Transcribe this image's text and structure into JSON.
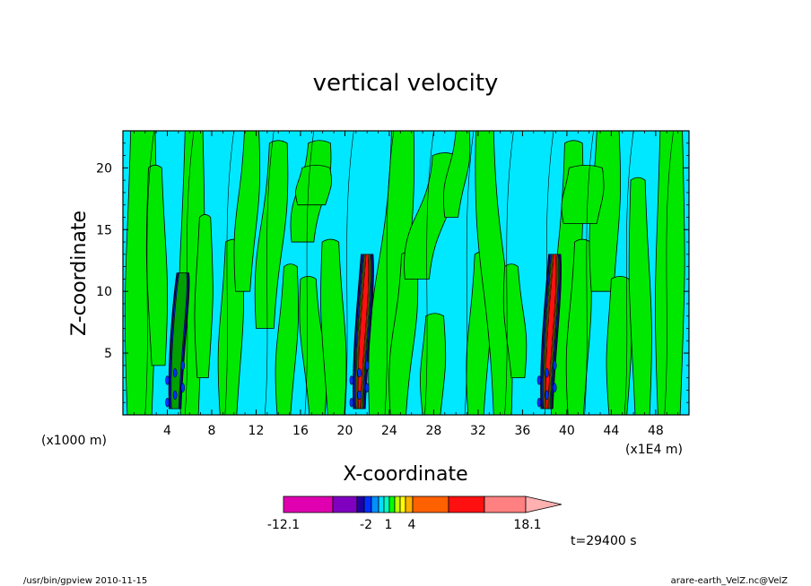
{
  "chart_data": {
    "type": "heatmap",
    "title": "vertical velocity",
    "xlabel": "X-coordinate",
    "ylabel": "Z-coordinate",
    "x_ticks": [
      "4",
      "8",
      "12",
      "16",
      "20",
      "24",
      "28",
      "32",
      "36",
      "40",
      "44",
      "48"
    ],
    "y_ticks": [
      "5",
      "10",
      "15",
      "20"
    ],
    "x_unit_left": "(x1000 m)",
    "x_unit_right": "(x1E4 m)",
    "xlim": [
      0,
      51
    ],
    "ylim": [
      0,
      23
    ],
    "field": {
      "background": "near-zero",
      "updraft_columns_x": [
        4.7,
        21.3,
        38.2
      ],
      "updraft_vertical_extent": [
        0,
        13
      ],
      "peak_value": 18.1,
      "min_value": -12.1
    },
    "colorbar": {
      "tick_labels": [
        "-12.1",
        "-2",
        "1",
        "4",
        "18.1"
      ],
      "colors": [
        "#e000b0",
        "#8000c0",
        "#2000a0",
        "#0030ff",
        "#0090ff",
        "#00e0ff",
        "#00ffc0",
        "#00ff00",
        "#c0ff00",
        "#ffff00",
        "#ffb000",
        "#ff6000",
        "#ff1010",
        "#ff8080",
        "#ffb0b0"
      ],
      "extend": "max"
    },
    "annotation_time": "t=29400 s"
  },
  "footer": {
    "left": "/usr/bin/gpview   2010-11-15",
    "right": "arare-earth_VelZ.nc@VelZ"
  }
}
